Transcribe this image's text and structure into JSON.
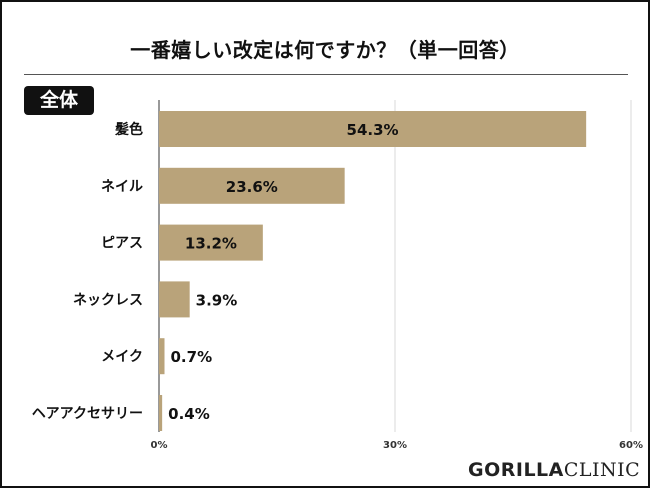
{
  "title": "一番嬉しい改定は何ですか？（単一回答）",
  "segment_label": "全体",
  "logo": {
    "part1": "GORILLA",
    "part2": "CLINIC"
  },
  "colors": {
    "bar": "#b9a37a",
    "grid": "#d9d9d9",
    "axis": "#333333"
  },
  "chart_data": {
    "type": "bar",
    "orientation": "horizontal",
    "categories": [
      "髪色",
      "ネイル",
      "ピアス",
      "ネックレス",
      "メイク",
      "ヘアアクセサリー"
    ],
    "values": [
      54.3,
      23.6,
      13.2,
      3.9,
      0.7,
      0.4
    ],
    "value_labels": [
      "54.3%",
      "23.6%",
      "13.2%",
      "3.9%",
      "0.7%",
      "0.4%"
    ],
    "xlim": [
      0,
      60
    ],
    "ticks": [
      0,
      30,
      60
    ],
    "tick_labels": [
      "0%",
      "30%",
      "60%"
    ],
    "grid": true
  }
}
